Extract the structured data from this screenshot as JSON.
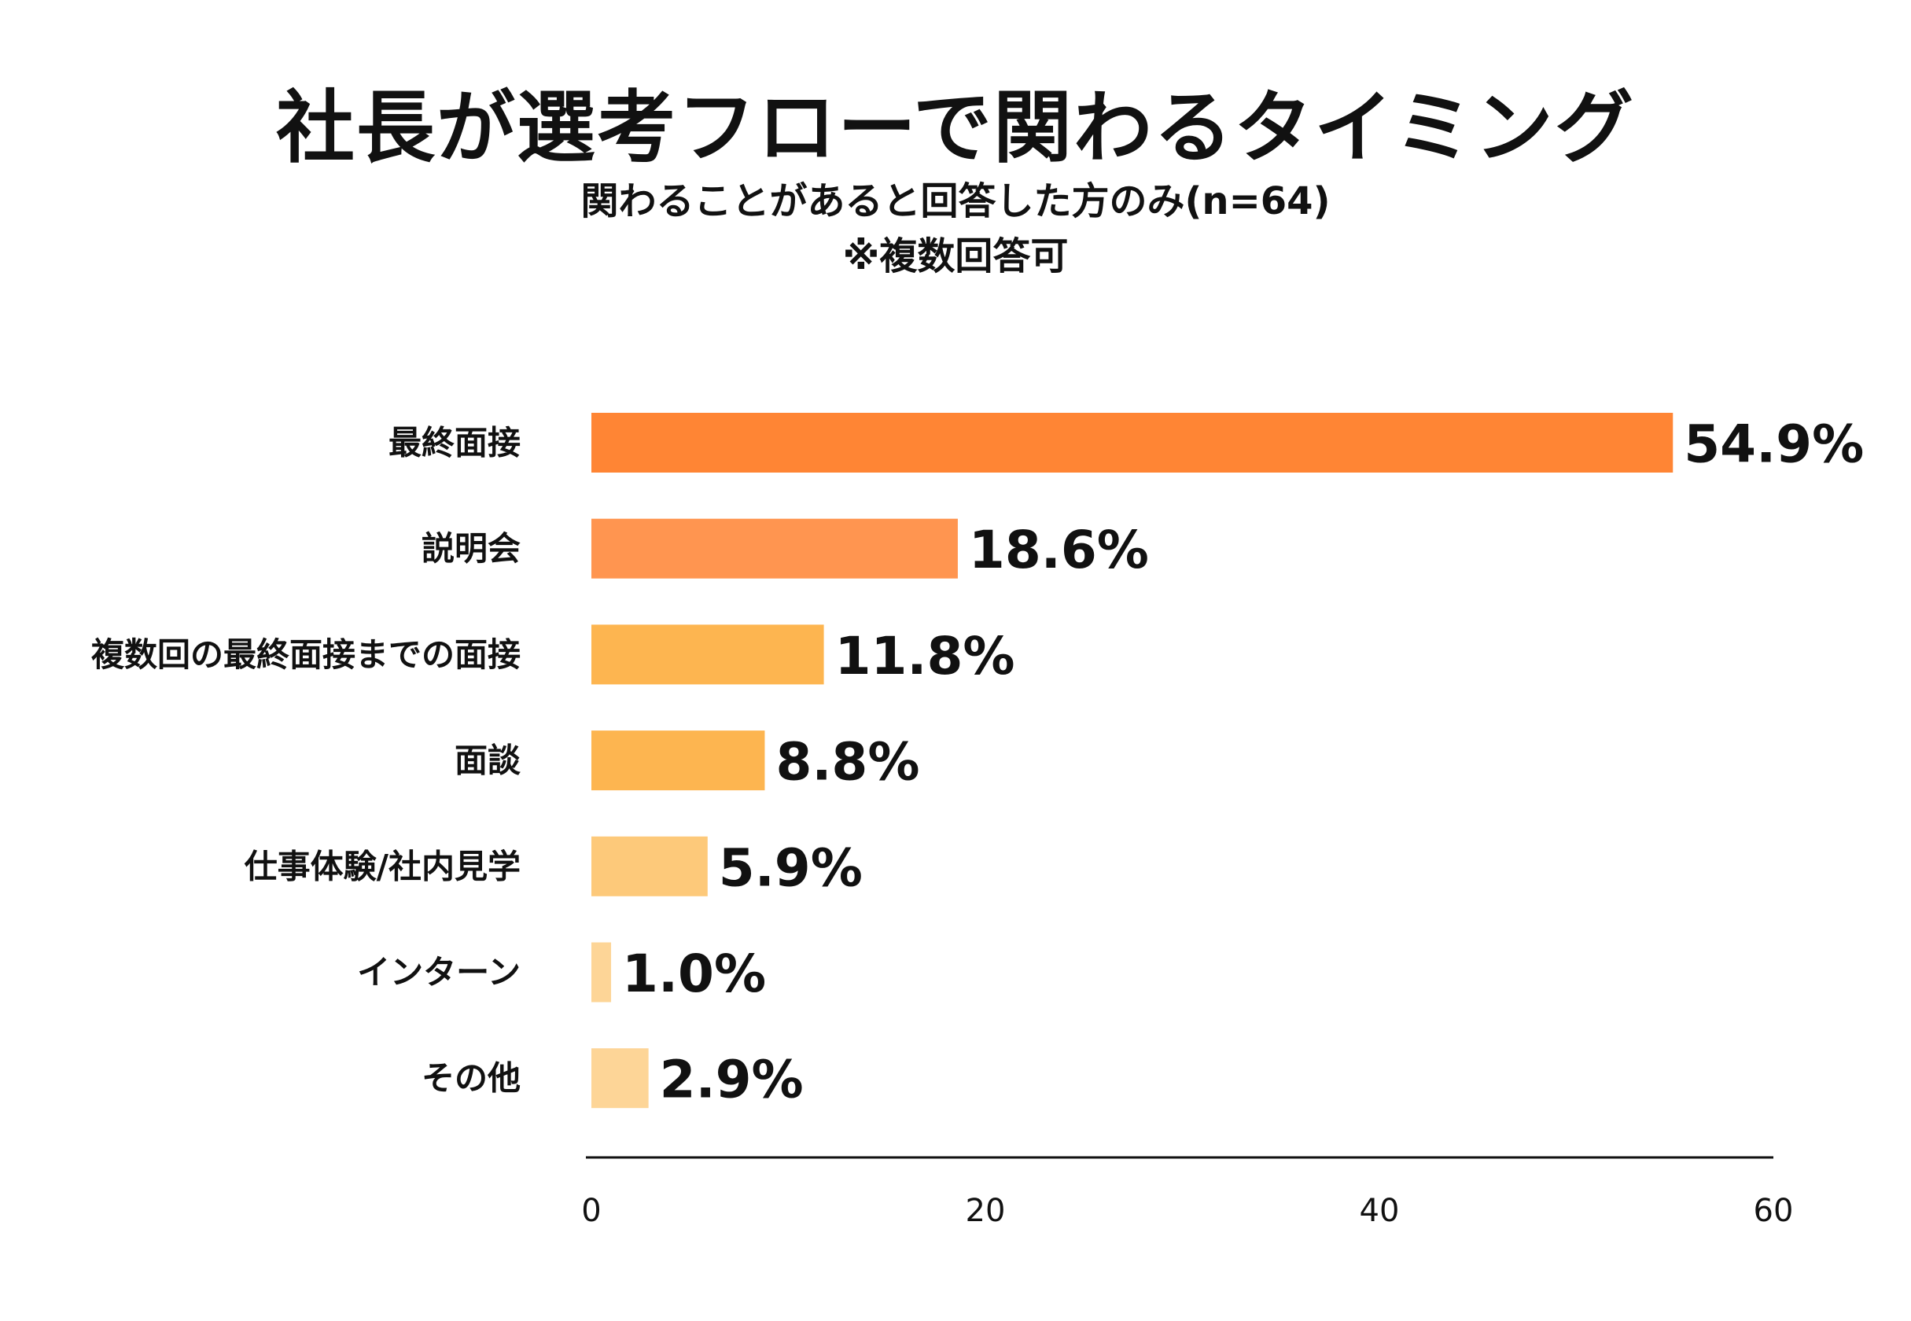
{
  "chart_data": {
    "type": "bar",
    "orientation": "horizontal",
    "title": "社長が選考フローで関わるタイミング",
    "subtitle": "関わることがあると回答した方のみ(n=64)",
    "note": "※複数回答可",
    "categories": [
      "最終面接",
      "説明会",
      "複数回の最終面接までの面接",
      "面談",
      "仕事体験/社内見学",
      "インターン",
      "その他"
    ],
    "values": [
      54.9,
      18.6,
      11.8,
      8.8,
      5.9,
      1.0,
      2.9
    ],
    "value_labels": [
      "54.9%",
      "18.6%",
      "11.8%",
      "8.8%",
      "5.9%",
      "1.0%",
      "2.9%"
    ],
    "bar_colors": [
      "#FF8534",
      "#FF9550",
      "#FDB550",
      "#FDB550",
      "#FDC97A",
      "#FDD597",
      "#FDD597"
    ],
    "xlim": [
      0,
      60
    ],
    "xticks": [
      0,
      20,
      40,
      60
    ],
    "xtick_labels": [
      "0",
      "20",
      "40",
      "60"
    ],
    "xlabel": "",
    "ylabel": "",
    "grid": false,
    "legend": false
  }
}
